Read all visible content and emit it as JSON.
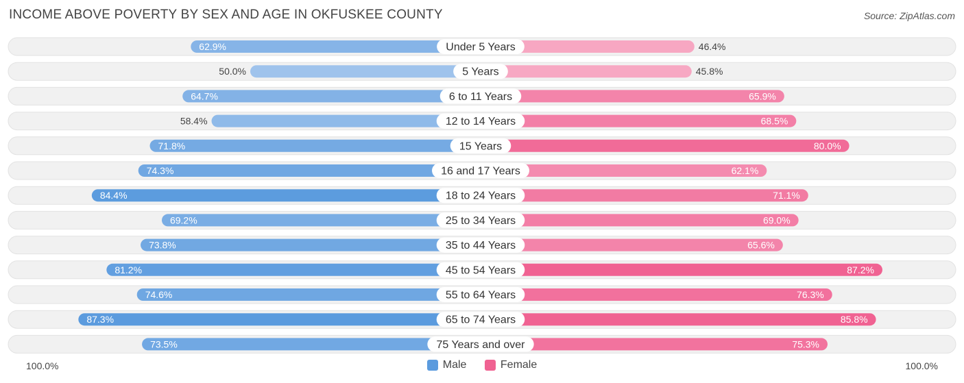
{
  "header": {
    "title": "INCOME ABOVE POVERTY BY SEX AND AGE IN OKFUSKEE COUNTY",
    "source": "Source: ZipAtlas.com"
  },
  "axis": {
    "left_label": "100.0%",
    "right_label": "100.0%"
  },
  "legend": {
    "male_label": "Male",
    "female_label": "Female"
  },
  "colors": {
    "male": "#5b9bde",
    "male_light": "#a9c9ee",
    "female": "#f06292",
    "female_light": "#f7a9c4",
    "track": "#f1f1f1"
  },
  "chart_data": {
    "type": "bar",
    "orientation": "horizontal-diverging",
    "title": "INCOME ABOVE POVERTY BY SEX AND AGE IN OKFUSKEE COUNTY",
    "xlim": [
      -100,
      100
    ],
    "categories": [
      "Under 5 Years",
      "5 Years",
      "6 to 11 Years",
      "12 to 14 Years",
      "15 Years",
      "16 and 17 Years",
      "18 to 24 Years",
      "25 to 34 Years",
      "35 to 44 Years",
      "45 to 54 Years",
      "55 to 64 Years",
      "65 to 74 Years",
      "75 Years and over"
    ],
    "series": [
      {
        "name": "Male",
        "values": [
          62.9,
          50.0,
          64.7,
          58.4,
          71.8,
          74.3,
          84.4,
          69.2,
          73.8,
          81.2,
          74.6,
          87.3,
          73.5
        ],
        "labels": [
          "62.9%",
          "50.0%",
          "64.7%",
          "58.4%",
          "71.8%",
          "74.3%",
          "84.4%",
          "69.2%",
          "73.8%",
          "81.2%",
          "74.6%",
          "87.3%",
          "73.5%"
        ]
      },
      {
        "name": "Female",
        "values": [
          46.4,
          45.8,
          65.9,
          68.5,
          80.0,
          62.1,
          71.1,
          69.0,
          65.6,
          87.2,
          76.3,
          85.8,
          75.3
        ],
        "labels": [
          "46.4%",
          "45.8%",
          "65.9%",
          "68.5%",
          "80.0%",
          "62.1%",
          "71.1%",
          "69.0%",
          "65.6%",
          "87.2%",
          "76.3%",
          "85.8%",
          "75.3%"
        ]
      }
    ]
  }
}
